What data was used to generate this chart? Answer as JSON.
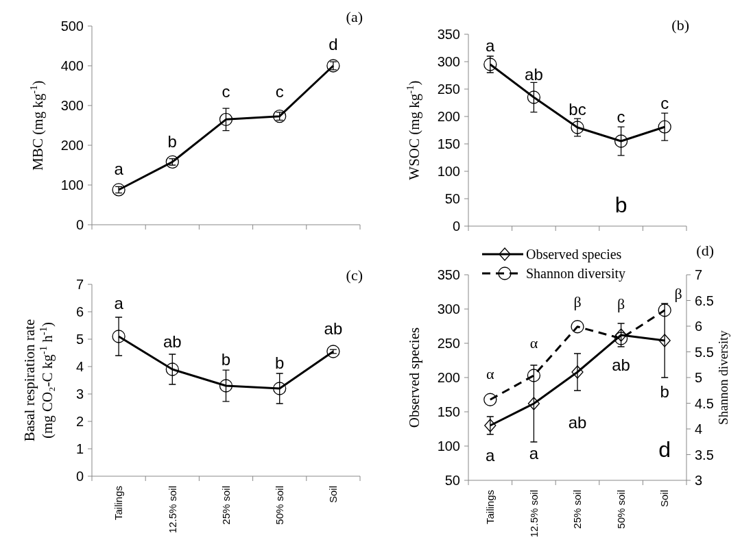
{
  "chart_data": [
    {
      "type": "line",
      "title": "(a)",
      "ylabel": "MBC (mg kg$^{-1}$)",
      "categories": [
        null,
        null,
        null,
        null,
        null
      ],
      "tick_labels": "y",
      "ylim": [
        0,
        500
      ],
      "yticks": [
        0,
        100,
        200,
        300,
        400,
        500
      ],
      "marker": "circle",
      "line_style": "solid",
      "series": [
        {
          "color": "#000000",
          "values": [
            88,
            158,
            265,
            273,
            400
          ],
          "errors": [
            8,
            8,
            28,
            10,
            10
          ]
        }
      ],
      "annotations": [
        "a",
        "b",
        "c",
        "c",
        "d"
      ]
    },
    {
      "type": "line",
      "title": "(b)",
      "ylabel": "WSOC  (mg kg$^{-1}$)",
      "categories": [
        null,
        null,
        null,
        null,
        null
      ],
      "tick_labels": "y",
      "ylim": [
        0,
        350
      ],
      "yticks": [
        0,
        50,
        100,
        150,
        200,
        250,
        300,
        350
      ],
      "marker": "circle",
      "line_style": "solid",
      "series": [
        {
          "color": "#000000",
          "values": [
            295,
            235,
            180,
            155,
            181
          ],
          "errors": [
            15,
            27,
            16,
            26,
            25
          ]
        }
      ],
      "annotations": [
        "a",
        "ab",
        "bc",
        "c",
        "c",
        "b"
      ]
    },
    {
      "type": "line",
      "title": "(c)",
      "ylabel": "Basal respiration rate\n(mg CO₂-C kg$^{-1}$ h$^{-1}$)",
      "categories": [
        "Tailings",
        "12.5% soil",
        "25% soil",
        "50% soil",
        "Soil"
      ],
      "ylim": [
        0,
        7
      ],
      "yticks": [
        0,
        1,
        2,
        3,
        4,
        5,
        6,
        7
      ],
      "marker": "circle",
      "line_style": "solid",
      "series": [
        {
          "color": "#000000",
          "values": [
            5.1,
            3.9,
            3.3,
            3.2,
            4.55
          ],
          "errors": [
            0.7,
            0.55,
            0.57,
            0.55,
            0.07
          ]
        }
      ],
      "annotations": [
        "a",
        "ab",
        "b",
        "b",
        "ab"
      ]
    },
    {
      "type": "line",
      "title": "(d)",
      "ylabel": "Observed species",
      "y2label": "Shannon diversity",
      "categories": [
        "Tailings",
        "12.5% soil",
        "25% soil",
        "50% soil",
        "Soil"
      ],
      "ylim": [
        50,
        350
      ],
      "yticks": [
        50,
        100,
        150,
        200,
        250,
        300,
        350
      ],
      "y2lim": [
        3,
        7
      ],
      "y2ticks": [
        3,
        3.5,
        4,
        4.5,
        5,
        5.5,
        6,
        6.5,
        7
      ],
      "legend": "top",
      "series": [
        {
          "name": "Observed species",
          "color": "#000000",
          "marker": "diamond",
          "line_style": "solid",
          "values": [
            130,
            162,
            208,
            262,
            254
          ],
          "errors": [
            13,
            56,
            27,
            17,
            54
          ]
        },
        {
          "name": "Shannon diversity",
          "color": "#000000",
          "marker": "circle",
          "line_style": "dashed",
          "axis": "y2",
          "values": [
            4.57,
            5.04,
            5.99,
            5.76,
            6.31
          ]
        }
      ],
      "annotations": [
        "a",
        "a",
        "ab",
        "ab",
        "b",
        "α",
        "α",
        "β",
        "β",
        "β",
        "d"
      ]
    }
  ]
}
